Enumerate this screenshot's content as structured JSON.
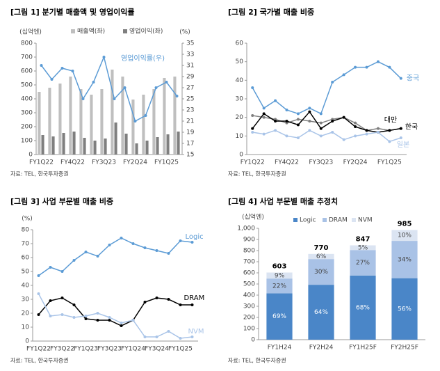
{
  "chart_data": [
    {
      "type": "combo",
      "title": "[그림 1] 분기별 매출액 및 영업이익률",
      "y_label": "(십억엔)",
      "y2_label": "(%)",
      "source": "자료: TEL, 한국투자증권",
      "categories": [
        "FY1Q22",
        null,
        null,
        "FY4Q22",
        null,
        null,
        "FY3Q23",
        null,
        null,
        "FY2Q24",
        null,
        null,
        "FY1Q25",
        null
      ],
      "series": [
        {
          "name": "매출액(좌)",
          "color": "#bfbfbf",
          "values": [
            450,
            480,
            510,
            560,
            470,
            430,
            470,
            610,
            560,
            395,
            430,
            470,
            550,
            560
          ]
        },
        {
          "name": "영업이익(좌)",
          "color": "#7f7f7f",
          "values": [
            140,
            130,
            155,
            165,
            120,
            100,
            115,
            230,
            150,
            80,
            100,
            125,
            145,
            165
          ]
        },
        {
          "name": "영업이익률(우)",
          "color": "#5b9bd5",
          "axis": "y2",
          "type": "line",
          "values": [
            31,
            28.5,
            30.5,
            30,
            25,
            28,
            32.5,
            25,
            27,
            21,
            22,
            27,
            28,
            25.5
          ]
        }
      ],
      "ylim": [
        0,
        800
      ],
      "yticks": [
        0,
        100,
        200,
        300,
        400,
        500,
        600,
        700,
        800
      ],
      "y2lim": [
        15,
        35
      ],
      "y2ticks": [
        15,
        17,
        19,
        21,
        23,
        25,
        27,
        29,
        31,
        33,
        35
      ]
    },
    {
      "type": "line",
      "title": "[그림 2] 국가별 매출 비중",
      "source": "자료: TEL, 한국투자증권",
      "categories": [
        "FY1Q22",
        null,
        null,
        "FY4Q22",
        null,
        null,
        "FY3Q23",
        null,
        null,
        "FY2Q24",
        null,
        null,
        "FY1Q25",
        null
      ],
      "series": [
        {
          "name": "중국",
          "color": "#5b9bd5",
          "values": [
            36,
            25,
            29,
            24,
            22,
            25,
            22,
            39,
            43,
            47,
            47,
            50,
            47,
            41
          ]
        },
        {
          "name": "대만",
          "color": "#7f7f7f",
          "values": [
            21,
            20,
            19,
            17,
            19,
            18,
            17,
            19,
            20,
            17,
            13,
            14,
            13,
            14
          ]
        },
        {
          "name": "한국",
          "color": "#000000",
          "values": [
            14,
            22,
            18,
            18,
            16,
            23,
            14,
            18,
            20,
            15,
            13,
            12,
            13,
            14
          ]
        },
        {
          "name": "일본",
          "color": "#a9c4e8",
          "values": [
            12,
            11,
            13,
            10,
            9,
            13,
            10,
            12,
            8,
            10,
            11,
            12,
            7,
            9
          ]
        }
      ],
      "ylim": [
        0,
        60
      ],
      "yticks": [
        0,
        10,
        20,
        30,
        40,
        50,
        60
      ]
    },
    {
      "type": "line",
      "title": "[그림 3] 사업 부문별 매출 비중",
      "y_label": "(%)",
      "source": "자료: TEL, 한국투자증권",
      "categories": [
        "FY1Q22",
        null,
        "FY3Q22",
        null,
        "FY1Q23",
        null,
        "FY3Q23",
        null,
        "FY1Q24",
        null,
        "FY3Q24",
        null,
        "FY1Q25",
        null
      ],
      "series": [
        {
          "name": "Logic",
          "color": "#5b9bd5",
          "values": [
            47,
            53,
            50,
            58,
            64,
            61,
            69,
            74,
            70,
            67,
            65,
            63,
            72,
            71
          ]
        },
        {
          "name": "DRAM",
          "color": "#000000",
          "values": [
            19,
            29,
            31,
            26,
            16,
            15,
            15,
            11,
            15,
            28,
            31,
            30,
            26,
            26
          ]
        },
        {
          "name": "NVM",
          "color": "#a9c4e8",
          "values": [
            34,
            18,
            19,
            17,
            18,
            20,
            17,
            13,
            15,
            3,
            3,
            7,
            2,
            3
          ]
        }
      ],
      "ylim": [
        0,
        80
      ],
      "yticks": [
        0,
        10,
        20,
        30,
        40,
        50,
        60,
        70,
        80
      ]
    },
    {
      "type": "stacked_bar",
      "title": "[그림 4] 사업 부문별 매출 추정치",
      "y_label": "(십억엔)",
      "source": "자료: TEL, 한국투자증권",
      "categories": [
        "FY1H24",
        "FY2H24",
        "FY1H25F",
        "FY2H25F"
      ],
      "series": [
        {
          "name": "Logic",
          "color": "#4a86c8",
          "values": [
            416,
            493,
            576,
            552
          ],
          "value_labels": [
            "69%",
            "64%",
            "68%",
            "56%"
          ]
        },
        {
          "name": "DRAM",
          "color": "#a9c2e6",
          "values": [
            133,
            231,
            229,
            335
          ],
          "value_labels": [
            "22%",
            "30%",
            "27%",
            "34%"
          ]
        },
        {
          "name": "NVM",
          "color": "#dbe4f2",
          "values": [
            54,
            46,
            42,
            98
          ],
          "value_labels": [
            "9%",
            "6%",
            "5%",
            "10%"
          ]
        }
      ],
      "totals": [
        603,
        770,
        847,
        985
      ],
      "ylim": [
        0,
        1000
      ],
      "yticks": [
        0,
        100,
        200,
        300,
        400,
        500,
        600,
        700,
        800,
        900,
        {
          "value": 1000,
          "label": "1,000"
        }
      ]
    }
  ]
}
